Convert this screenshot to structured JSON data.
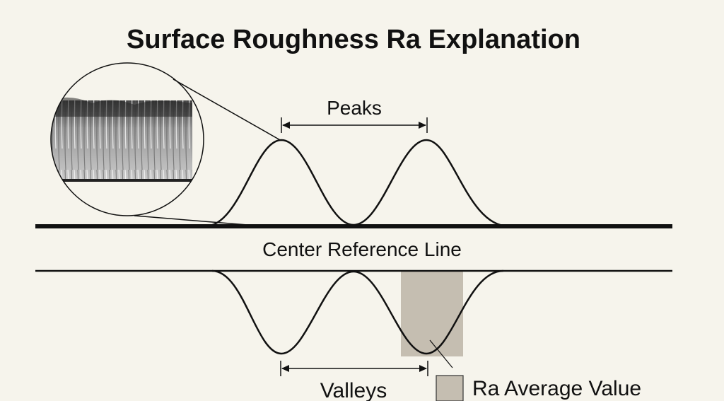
{
  "title": "Surface Roughness Ra Explanation",
  "labels": {
    "peaks": "Peaks",
    "center_line": "Center Reference Line",
    "valleys": "Valleys",
    "legend_ra": "Ra Average Value"
  },
  "colors": {
    "background": "#f6f4ec",
    "ink": "#111111",
    "ra_fill": "#c5beb1"
  },
  "inset": {
    "content": "magnified surface micrograph"
  }
}
